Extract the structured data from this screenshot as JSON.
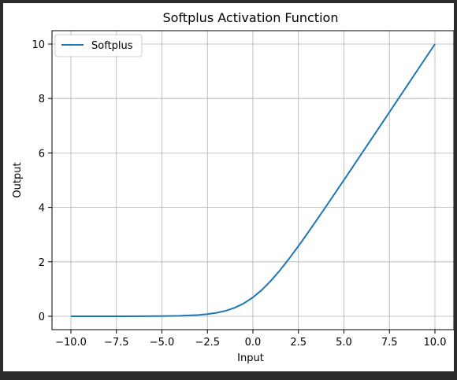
{
  "chart_data": {
    "type": "line",
    "title": "Softplus Activation Function",
    "xlabel": "Input",
    "ylabel": "Output",
    "xlim": [
      -10,
      10
    ],
    "ylim": [
      -0.5,
      10.5
    ],
    "grid": true,
    "legend_position": "top-left",
    "x_ticks": [
      -10,
      -7.5,
      -5,
      -2.5,
      0,
      2.5,
      5,
      7.5,
      10
    ],
    "x_tick_labels": [
      "−10.0",
      "−7.5",
      "−5.0",
      "−2.5",
      "0.0",
      "2.5",
      "5.0",
      "7.5",
      "10.0"
    ],
    "y_ticks": [
      0,
      2,
      4,
      6,
      8,
      10
    ],
    "y_tick_labels": [
      "0",
      "2",
      "4",
      "6",
      "8",
      "10"
    ],
    "series": [
      {
        "name": "Softplus",
        "color": "#1f77b4",
        "function": "ln(1 + e^x)",
        "x": [
          -10,
          -9,
          -8,
          -7,
          -6,
          -5,
          -4,
          -3,
          -2.5,
          -2,
          -1.5,
          -1,
          -0.5,
          0,
          0.5,
          1,
          1.5,
          2,
          2.5,
          3,
          3.5,
          4,
          5,
          6,
          7,
          8,
          9,
          10
        ],
        "y": [
          4.54e-05,
          0.000123,
          0.000335,
          0.000911,
          0.00248,
          0.00672,
          0.0181,
          0.0486,
          0.0789,
          0.127,
          0.201,
          0.313,
          0.474,
          0.693,
          0.974,
          1.313,
          1.701,
          2.127,
          2.579,
          3.049,
          3.53,
          4.018,
          5.007,
          6.002,
          7.001,
          8.0,
          9.0,
          10.0
        ]
      }
    ]
  }
}
